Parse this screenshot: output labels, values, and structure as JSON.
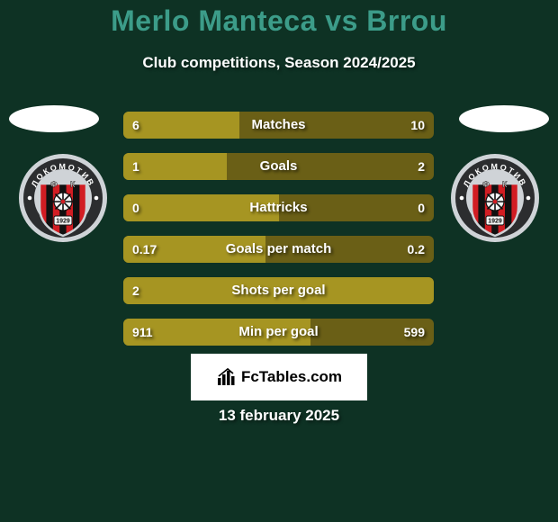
{
  "background_color": "#0e3224",
  "title": {
    "text": "Merlo Manteca vs Brrou",
    "color": "#3c9c89",
    "fontsize": 32,
    "weight": 800
  },
  "subtitle": {
    "text": "Club competitions, Season 2024/2025",
    "color": "#ffffff",
    "fontsize": 17
  },
  "date_line": {
    "text": "13 february 2025",
    "color": "#ffffff",
    "fontsize": 17
  },
  "bar_area": {
    "bar_color": "#a69522",
    "track_color": "#6a5f16",
    "text_color": "#ffffff",
    "height": 30,
    "gap": 16,
    "rows": [
      {
        "label": "Matches",
        "left_val": "6",
        "right_val": "10",
        "left_pct": 37.5
      },
      {
        "label": "Goals",
        "left_val": "1",
        "right_val": "2",
        "left_pct": 33.3
      },
      {
        "label": "Hattricks",
        "left_val": "0",
        "right_val": "0",
        "left_pct": 50.0
      },
      {
        "label": "Goals per match",
        "left_val": "0.17",
        "right_val": "0.2",
        "left_pct": 45.9
      },
      {
        "label": "Shots per goal",
        "left_val": "2",
        "right_val": "",
        "left_pct": 100.0
      },
      {
        "label": "Min per goal",
        "left_val": "911",
        "right_val": "599",
        "left_pct": 60.3
      }
    ]
  },
  "shadow_ellipse_color": "#ffffff",
  "crest": {
    "outer_gray": "#cfd3d7",
    "ring_text_bg": "#2c2d2f",
    "ring_text_color": "#ffffff",
    "stripes": {
      "black": "#111111",
      "red": "#d21d23"
    },
    "top_text": "ЛОКОМОТИВ",
    "bottom_text": "СОФИЯ",
    "year": "1929"
  },
  "watermark": {
    "bg": "#ffffff",
    "text": "FcTables.com",
    "text_color": "#000000",
    "icon_color": "#000000",
    "fontsize": 17
  }
}
